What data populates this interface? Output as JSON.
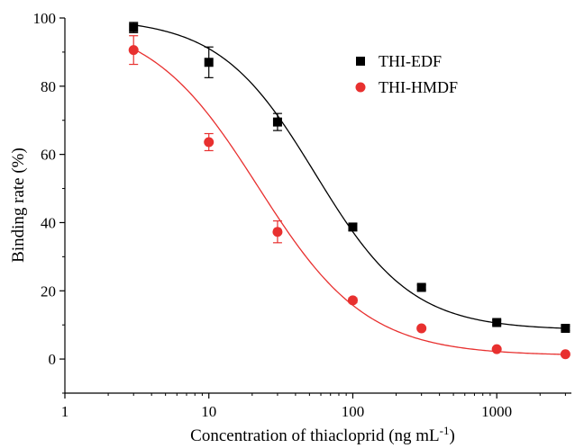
{
  "chart_data": {
    "type": "scatter",
    "xlabel": "Concentration of thiacloprid (ng mL",
    "xlabel_superscript": "-1",
    "xlabel_suffix": ")",
    "ylabel": "Binding rate (%)",
    "xscale": "log",
    "xlim": [
      1,
      3300
    ],
    "ylim": [
      -10,
      100
    ],
    "x_ticks": [
      1,
      10,
      100,
      1000
    ],
    "x_tick_labels": [
      "1",
      "10",
      "100",
      "1000"
    ],
    "y_ticks": [
      0,
      20,
      40,
      60,
      80,
      100
    ],
    "y_tick_labels": [
      "0",
      "20",
      "40",
      "60",
      "80",
      "100"
    ],
    "grid": false,
    "legend_position": "top-right",
    "series": [
      {
        "name": "THI-EDF",
        "color": "#000000",
        "marker": "square",
        "x": [
          3,
          10,
          30,
          100,
          300,
          1000,
          3000
        ],
        "y": [
          97.2,
          87.0,
          69.5,
          38.7,
          21.0,
          10.7,
          9.0
        ],
        "error": [
          1.5,
          4.5,
          2.5,
          1.0,
          0.7,
          0.7,
          0.7
        ],
        "fit": {
          "top": 100,
          "bottom": 8.5,
          "ic50": 55,
          "slope": 1.3
        }
      },
      {
        "name": "THI-HMDF",
        "color": "#e8302f",
        "marker": "circle",
        "x": [
          3,
          10,
          30,
          100,
          300,
          1000,
          3000
        ],
        "y": [
          90.6,
          63.6,
          37.3,
          17.2,
          9.0,
          2.9,
          1.4
        ],
        "error": [
          4.2,
          2.5,
          3.2,
          0.7,
          0.5,
          0.4,
          0.4
        ],
        "fit": {
          "top": 100,
          "bottom": 1.0,
          "ic50": 22,
          "slope": 1.15
        }
      }
    ]
  }
}
